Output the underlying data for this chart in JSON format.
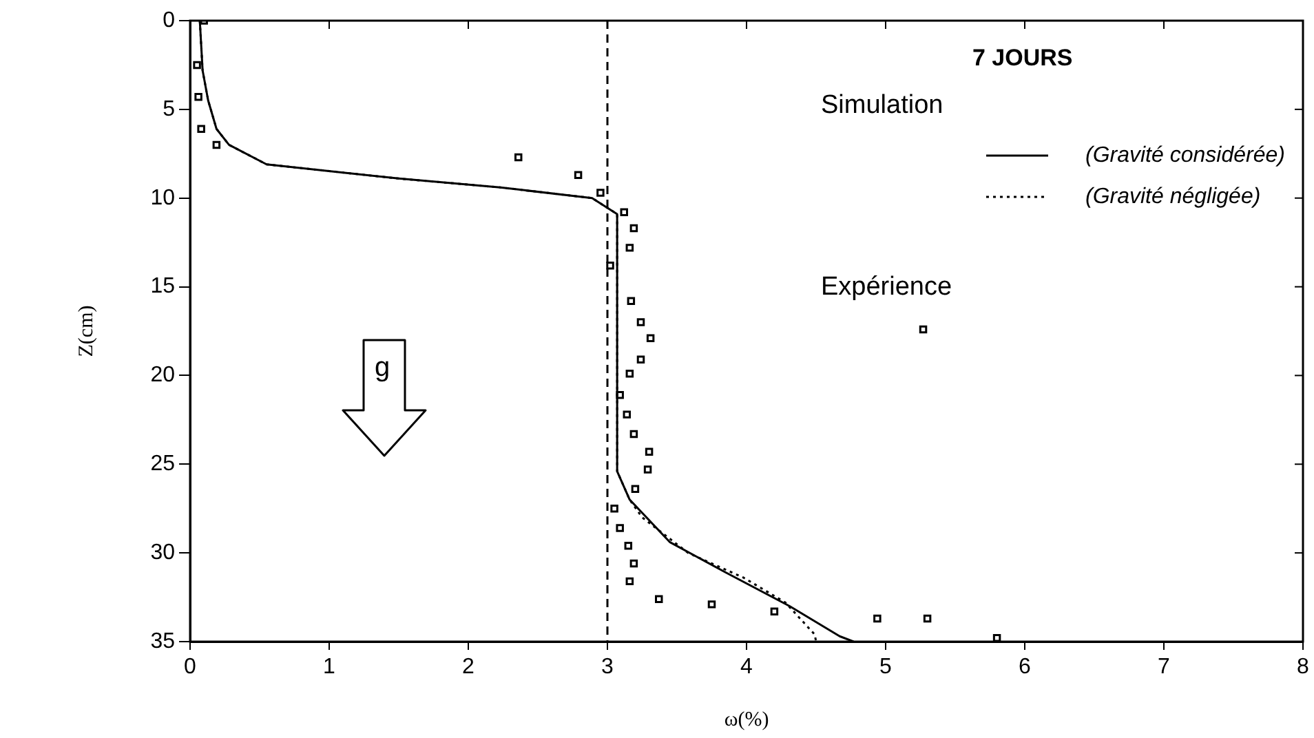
{
  "chart_data": {
    "type": "line",
    "title": "7 JOURS",
    "legend_title": "Simulation",
    "xlabel": "ω(%)",
    "ylabel": "Z(cm)",
    "xlim": [
      0,
      8
    ],
    "xticks": [
      0,
      1,
      2,
      3,
      4,
      5,
      6,
      7,
      8
    ],
    "ylim": [
      35,
      0
    ],
    "yticks": [
      0,
      5,
      10,
      15,
      20,
      25,
      30,
      35
    ],
    "grid": false,
    "legend": "top right",
    "annotations": [
      "g"
    ],
    "ref_lines": [
      {
        "axis": "x",
        "value": 3,
        "color": "#000000",
        "line_style": "dashed"
      }
    ],
    "series": [
      {
        "name": "(Gravité considérée)",
        "color": "#000000",
        "line_style": "solid",
        "marker": "none",
        "x": [
          0.07,
          0.09,
          0.13,
          0.19,
          0.28,
          0.55,
          1.5,
          2.23,
          2.89,
          3.07,
          3.07,
          3.16,
          3.45,
          3.85,
          4.31,
          4.67,
          4.77
        ],
        "values": [
          0,
          2.8,
          4.5,
          6.1,
          7,
          8.1,
          8.9,
          9.4,
          10,
          10.9,
          25.4,
          27,
          29.4,
          31.1,
          33,
          34.7,
          35
        ]
      },
      {
        "name": "(Gravité négligée)",
        "color": "#000000",
        "line_style": "dotted",
        "marker": "none",
        "x": [
          0.07,
          0.09,
          0.13,
          0.19,
          0.28,
          0.55,
          1.5,
          2.23,
          2.89,
          3.07,
          3.07,
          3.16,
          3.25,
          3.58,
          3.98,
          4.28,
          4.49,
          4.5
        ],
        "values": [
          0,
          2.8,
          4.5,
          6.1,
          7,
          8.1,
          8.9,
          9.4,
          10,
          10.9,
          25.4,
          27,
          28,
          30,
          31.4,
          32.8,
          34.6,
          35
        ]
      },
      {
        "name": "Expérience",
        "type": "scatter",
        "color": "#000000",
        "marker": "square",
        "x": [
          0.1,
          0.05,
          0.06,
          0.08,
          0.19,
          2.36,
          2.79,
          2.95,
          3.12,
          3.19,
          3.16,
          3.02,
          3.17,
          3.24,
          3.31,
          3.24,
          3.16,
          3.09,
          3.14,
          3.19,
          3.3,
          3.29,
          3.2,
          3.05,
          3.09,
          3.15,
          3.19,
          3.16,
          3.37,
          3.75,
          4.2,
          4.94,
          5.3,
          5.27,
          5.8
        ],
        "values": [
          0,
          2.5,
          4.3,
          6.1,
          7,
          7.7,
          8.7,
          9.7,
          10.8,
          11.7,
          12.8,
          13.8,
          15.8,
          17,
          17.9,
          19.1,
          19.9,
          21.1,
          22.2,
          23.3,
          24.3,
          25.3,
          26.4,
          27.5,
          28.6,
          29.6,
          30.6,
          31.6,
          32.6,
          32.9,
          33.3,
          33.7,
          33.7,
          17.4,
          34.8
        ]
      }
    ]
  }
}
